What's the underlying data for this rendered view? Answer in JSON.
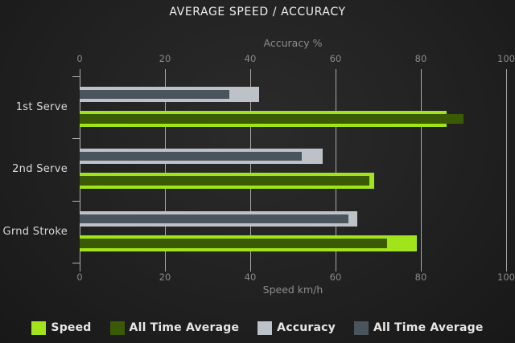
{
  "title": "AVERAGE SPEED / ACCURACY",
  "chart_data": {
    "type": "bar",
    "orientation": "horizontal",
    "categories": [
      "1st Serve",
      "2nd Serve",
      "Grnd Stroke"
    ],
    "series": [
      {
        "name": "Speed",
        "role": "speed",
        "color": "#a2e41b",
        "values": [
          86,
          69,
          79
        ]
      },
      {
        "name": "All Time Average",
        "role": "speed-avg",
        "color": "#3a5a06",
        "values": [
          90,
          68,
          72
        ]
      },
      {
        "name": "Accuracy",
        "role": "accuracy",
        "color": "#bcc2c7",
        "values": [
          42,
          57,
          65
        ]
      },
      {
        "name": "All Time Average",
        "role": "accuracy-avg",
        "color": "#4a545c",
        "values": [
          35,
          52,
          63
        ]
      }
    ],
    "top_axis": {
      "label": "Accuracy %",
      "ticks": [
        0,
        20,
        40,
        60,
        80,
        100
      ]
    },
    "bottom_axis": {
      "label": "Speed km/h",
      "ticks": [
        0,
        20,
        40,
        60,
        80,
        100
      ]
    },
    "xlim": [
      0,
      100
    ],
    "grid": true,
    "legend_position": "bottom"
  },
  "colors": {
    "background_center": "#2b2b2b",
    "background_edge": "#181818",
    "grid": "#a9a9a9",
    "title_text": "#f1f1f1",
    "axis_text": "#8a8a8a",
    "category_text": "#d8d8d8",
    "legend_text": "#e7e7e7"
  }
}
